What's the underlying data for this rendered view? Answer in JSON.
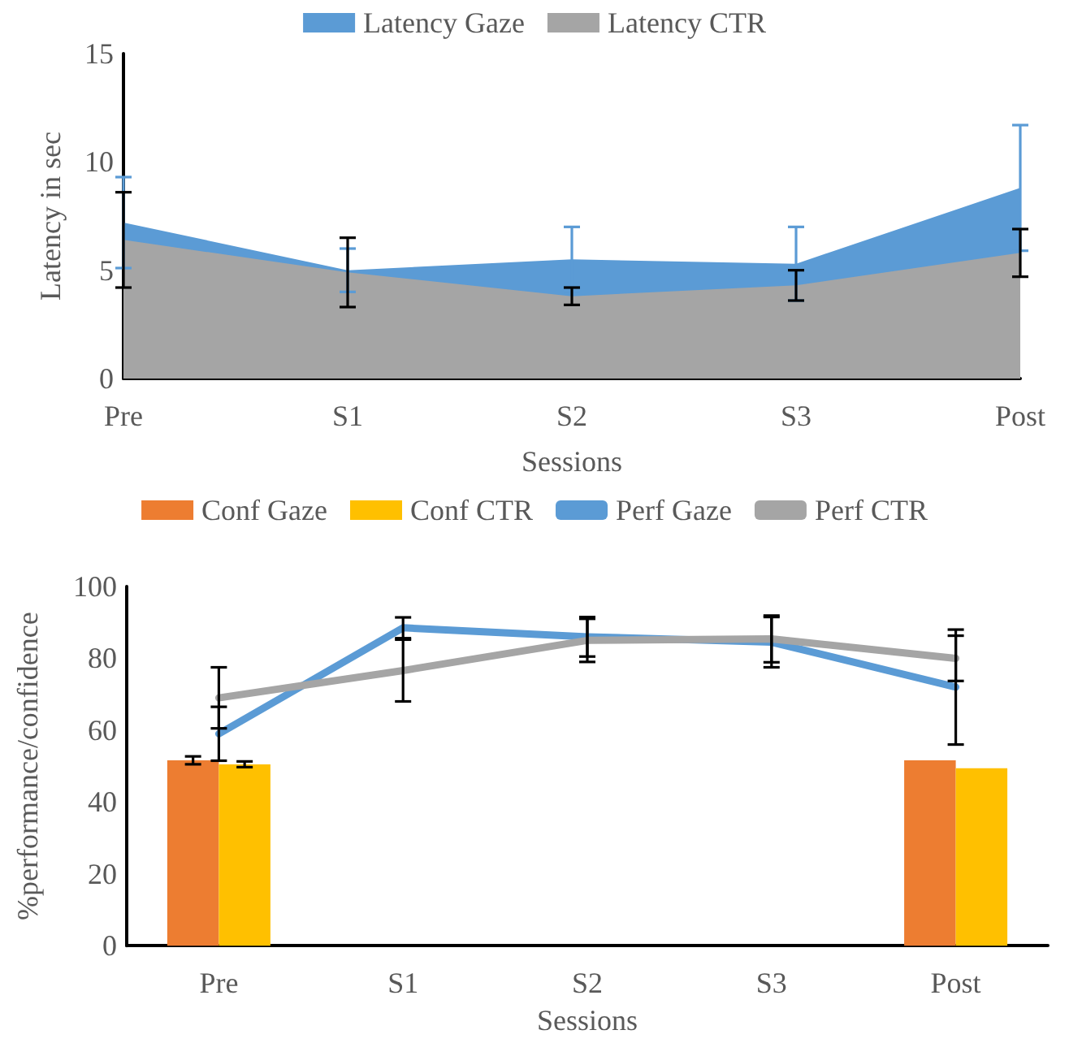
{
  "chart_data": [
    {
      "type": "area",
      "xlabel": "Sessions",
      "ylabel": "Latency in sec",
      "categories": [
        "Pre",
        "S1",
        "S2",
        "S3",
        "Post"
      ],
      "ylim": [
        0,
        15
      ],
      "yticks": [
        0,
        5,
        10,
        15
      ],
      "grid": false,
      "legend": "top",
      "series": [
        {
          "name": "Latency Gaze",
          "color": "#5b9bd5",
          "values": [
            7.2,
            5.0,
            5.5,
            5.3,
            8.8
          ],
          "errors": [
            2.1,
            1.0,
            1.5,
            1.7,
            2.9
          ]
        },
        {
          "name": "Latency CTR",
          "color": "#a5a5a5",
          "values": [
            6.4,
            4.9,
            3.8,
            4.3,
            5.8
          ],
          "errors": [
            2.2,
            1.6,
            0.4,
            0.7,
            1.1
          ]
        }
      ]
    },
    {
      "type": "bar",
      "xlabel": "Sessions",
      "ylabel": "%performance/confidence",
      "categories": [
        "Pre",
        "S1",
        "S2",
        "S3",
        "Post"
      ],
      "ylim": [
        0,
        100
      ],
      "yticks": [
        0,
        20,
        40,
        60,
        80,
        100
      ],
      "grid": false,
      "legend": "top",
      "marker": "none",
      "series": [
        {
          "name": "Conf Gaze",
          "color": "#ed7d31",
          "values": [
            51.6,
            null,
            null,
            null,
            51.6
          ],
          "errors": [
            1.1,
            null,
            null,
            null,
            null
          ]
        },
        {
          "name": "Conf CTR",
          "color": "#ffc000",
          "values": [
            50.5,
            null,
            null,
            null,
            49.4
          ],
          "errors": [
            0.8,
            null,
            null,
            null,
            null
          ]
        },
        {
          "name": "Perf Gaze",
          "type": "line",
          "color": "#5b9bd5",
          "values": [
            59,
            88.5,
            86,
            84.5,
            72
          ],
          "errors": [
            7.5,
            2.9,
            5.5,
            7,
            16
          ]
        },
        {
          "name": "Perf CTR",
          "type": "line",
          "color": "#a5a5a5",
          "values": [
            69,
            76.6,
            85,
            85.4,
            80
          ],
          "errors": [
            8.5,
            8.6,
            6,
            6.5,
            6.3
          ]
        }
      ]
    }
  ]
}
